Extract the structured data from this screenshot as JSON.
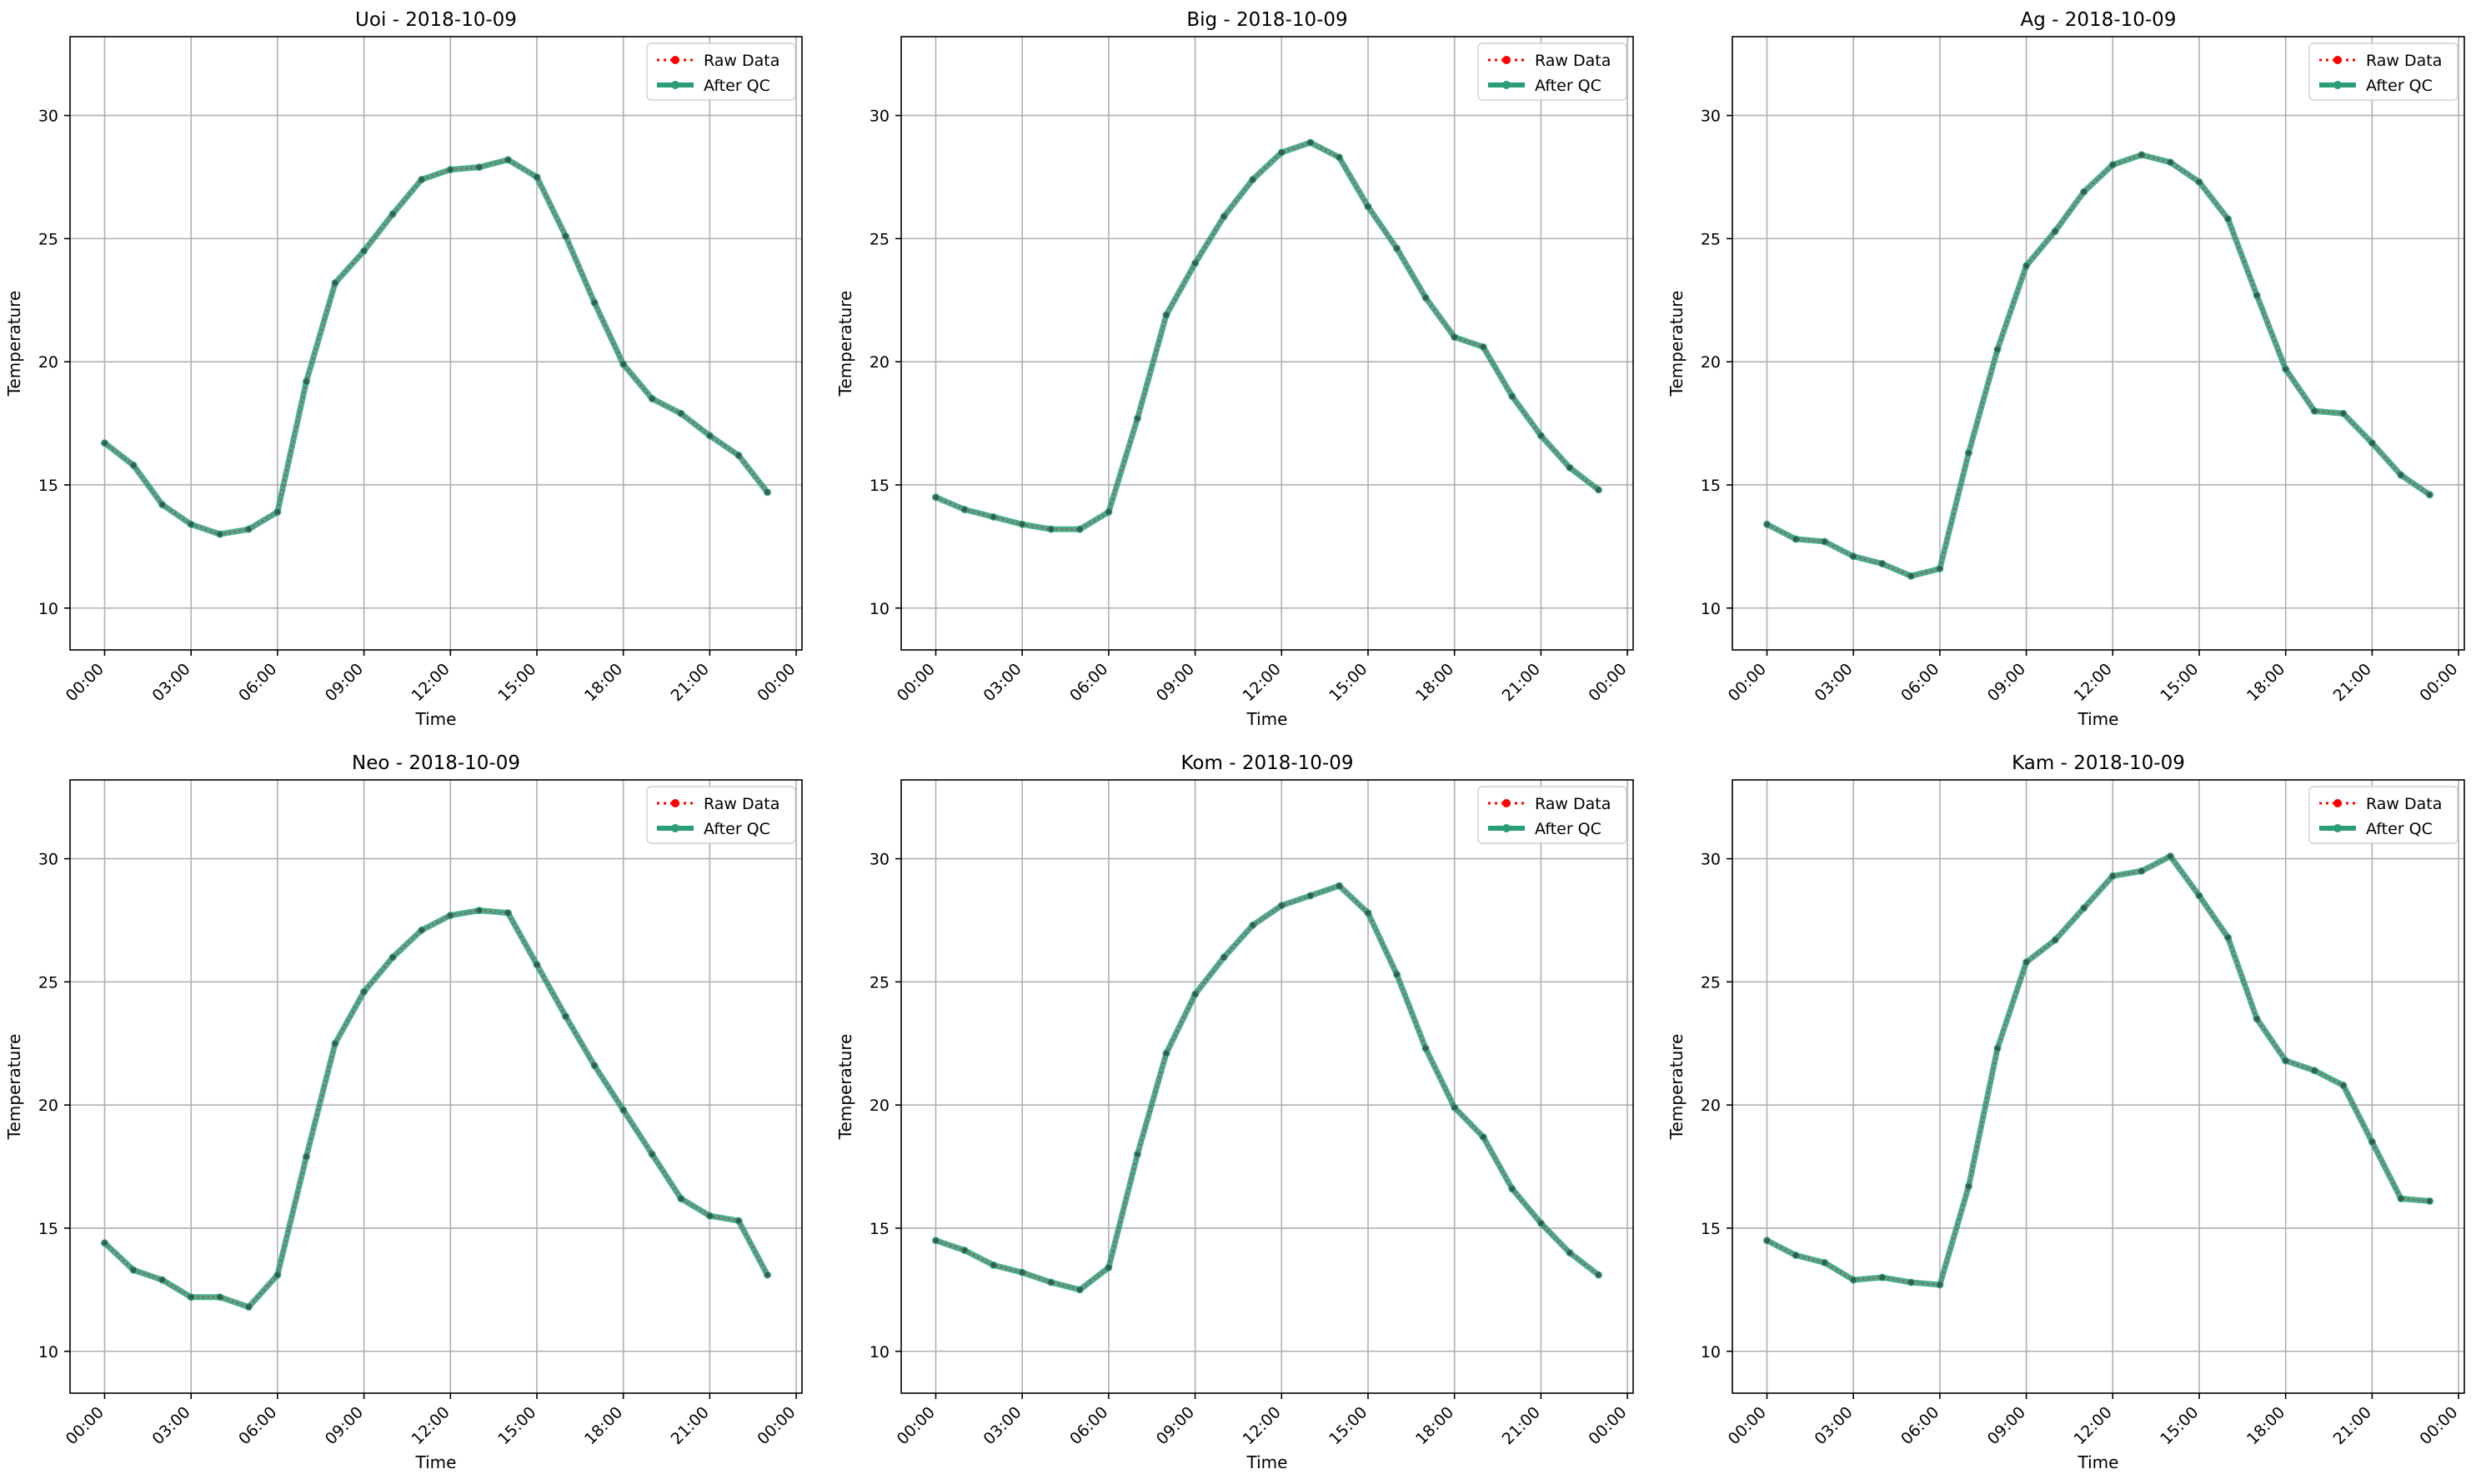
{
  "figure": {
    "x_tick_labels": [
      "00:00",
      "03:00",
      "06:00",
      "09:00",
      "12:00",
      "15:00",
      "18:00",
      "21:00",
      "00:00"
    ],
    "y_tick_labels": [
      "10",
      "15",
      "20",
      "25",
      "30"
    ],
    "legend": {
      "raw_label": "Raw Data",
      "qc_label": "After QC"
    },
    "colors": {
      "raw": "#ff0000",
      "qc": "#2a9d78",
      "grid": "#b0b0b0",
      "axes": "#000000"
    }
  },
  "chart_data": [
    {
      "type": "line",
      "title": "Uoi - 2018-10-09",
      "xlabel": "Time",
      "ylabel": "Temperature",
      "x": [
        "00:00",
        "01:00",
        "02:00",
        "03:00",
        "04:00",
        "05:00",
        "06:00",
        "07:00",
        "08:00",
        "09:00",
        "10:00",
        "11:00",
        "12:00",
        "13:00",
        "14:00",
        "15:00",
        "16:00",
        "17:00",
        "18:00",
        "19:00",
        "20:00",
        "21:00",
        "22:00",
        "23:00"
      ],
      "series": [
        {
          "name": "Raw Data",
          "values": [
            16.7,
            15.8,
            14.2,
            13.4,
            13.0,
            13.2,
            13.9,
            19.2,
            23.2,
            24.5,
            26.0,
            27.4,
            27.8,
            27.9,
            28.2,
            27.5,
            25.1,
            22.4,
            19.9,
            18.5,
            17.9,
            17.0,
            16.2,
            14.7
          ]
        },
        {
          "name": "After QC",
          "values": [
            16.7,
            15.8,
            14.2,
            13.4,
            13.0,
            13.2,
            13.9,
            19.2,
            23.2,
            24.5,
            26.0,
            27.4,
            27.8,
            27.9,
            28.2,
            27.5,
            25.1,
            22.4,
            19.9,
            18.5,
            17.9,
            17.0,
            16.2,
            14.7
          ]
        }
      ],
      "ylim": [
        8.3,
        33.2
      ],
      "grid": true,
      "legend_position": "top-right"
    },
    {
      "type": "line",
      "title": "Big - 2018-10-09",
      "xlabel": "Time",
      "ylabel": "Temperature",
      "x": [
        "00:00",
        "01:00",
        "02:00",
        "03:00",
        "04:00",
        "05:00",
        "06:00",
        "07:00",
        "08:00",
        "09:00",
        "10:00",
        "11:00",
        "12:00",
        "13:00",
        "14:00",
        "15:00",
        "16:00",
        "17:00",
        "18:00",
        "19:00",
        "20:00",
        "21:00",
        "22:00",
        "23:00"
      ],
      "series": [
        {
          "name": "Raw Data",
          "values": [
            14.5,
            14.0,
            13.7,
            13.4,
            13.2,
            13.2,
            13.9,
            17.7,
            21.9,
            24.0,
            25.9,
            27.4,
            28.5,
            28.9,
            28.3,
            26.3,
            24.6,
            22.6,
            21.0,
            20.6,
            18.6,
            17.0,
            15.7,
            14.8
          ]
        },
        {
          "name": "After QC",
          "values": [
            14.5,
            14.0,
            13.7,
            13.4,
            13.2,
            13.2,
            13.9,
            17.7,
            21.9,
            24.0,
            25.9,
            27.4,
            28.5,
            28.9,
            28.3,
            26.3,
            24.6,
            22.6,
            21.0,
            20.6,
            18.6,
            17.0,
            15.7,
            14.8
          ]
        }
      ],
      "ylim": [
        8.3,
        33.2
      ],
      "grid": true,
      "legend_position": "top-right"
    },
    {
      "type": "line",
      "title": "Ag - 2018-10-09",
      "xlabel": "Time",
      "ylabel": "Temperature",
      "x": [
        "00:00",
        "01:00",
        "02:00",
        "03:00",
        "04:00",
        "05:00",
        "06:00",
        "07:00",
        "08:00",
        "09:00",
        "10:00",
        "11:00",
        "12:00",
        "13:00",
        "14:00",
        "15:00",
        "16:00",
        "17:00",
        "18:00",
        "19:00",
        "20:00",
        "21:00",
        "22:00",
        "23:00"
      ],
      "series": [
        {
          "name": "Raw Data",
          "values": [
            13.4,
            12.8,
            12.7,
            12.1,
            11.8,
            11.3,
            11.6,
            16.3,
            20.5,
            23.9,
            25.3,
            26.9,
            28.0,
            28.4,
            28.1,
            27.3,
            25.8,
            22.7,
            19.7,
            18.0,
            17.9,
            16.7,
            15.4,
            14.6
          ]
        },
        {
          "name": "After QC",
          "values": [
            13.4,
            12.8,
            12.7,
            12.1,
            11.8,
            11.3,
            11.6,
            16.3,
            20.5,
            23.9,
            25.3,
            26.9,
            28.0,
            28.4,
            28.1,
            27.3,
            25.8,
            22.7,
            19.7,
            18.0,
            17.9,
            16.7,
            15.4,
            14.6
          ]
        }
      ],
      "ylim": [
        8.3,
        33.2
      ],
      "grid": true,
      "legend_position": "top-right"
    },
    {
      "type": "line",
      "title": "Neo - 2018-10-09",
      "xlabel": "Time",
      "ylabel": "Temperature",
      "x": [
        "00:00",
        "01:00",
        "02:00",
        "03:00",
        "04:00",
        "05:00",
        "06:00",
        "07:00",
        "08:00",
        "09:00",
        "10:00",
        "11:00",
        "12:00",
        "13:00",
        "14:00",
        "15:00",
        "16:00",
        "17:00",
        "18:00",
        "19:00",
        "20:00",
        "21:00",
        "22:00",
        "23:00"
      ],
      "series": [
        {
          "name": "Raw Data",
          "values": [
            14.4,
            13.3,
            12.9,
            12.2,
            12.2,
            11.8,
            13.1,
            17.9,
            22.5,
            24.6,
            26.0,
            27.1,
            27.7,
            27.9,
            27.8,
            25.7,
            23.6,
            21.6,
            19.8,
            18.0,
            16.2,
            15.5,
            15.3,
            13.1
          ]
        },
        {
          "name": "After QC",
          "values": [
            14.4,
            13.3,
            12.9,
            12.2,
            12.2,
            11.8,
            13.1,
            17.9,
            22.5,
            24.6,
            26.0,
            27.1,
            27.7,
            27.9,
            27.8,
            25.7,
            23.6,
            21.6,
            19.8,
            18.0,
            16.2,
            15.5,
            15.3,
            13.1
          ]
        }
      ],
      "ylim": [
        8.3,
        33.2
      ],
      "grid": true,
      "legend_position": "top-right"
    },
    {
      "type": "line",
      "title": "Kom - 2018-10-09",
      "xlabel": "Time",
      "ylabel": "Temperature",
      "x": [
        "00:00",
        "01:00",
        "02:00",
        "03:00",
        "04:00",
        "05:00",
        "06:00",
        "07:00",
        "08:00",
        "09:00",
        "10:00",
        "11:00",
        "12:00",
        "13:00",
        "14:00",
        "15:00",
        "16:00",
        "17:00",
        "18:00",
        "19:00",
        "20:00",
        "21:00",
        "22:00",
        "23:00"
      ],
      "series": [
        {
          "name": "Raw Data",
          "values": [
            14.5,
            14.1,
            13.5,
            13.2,
            12.8,
            12.5,
            13.4,
            18.0,
            22.1,
            24.5,
            26.0,
            27.3,
            28.1,
            28.5,
            28.9,
            27.8,
            25.3,
            22.3,
            19.9,
            18.7,
            16.6,
            15.2,
            14.0,
            13.1
          ]
        },
        {
          "name": "After QC",
          "values": [
            14.5,
            14.1,
            13.5,
            13.2,
            12.8,
            12.5,
            13.4,
            18.0,
            22.1,
            24.5,
            26.0,
            27.3,
            28.1,
            28.5,
            28.9,
            27.8,
            25.3,
            22.3,
            19.9,
            18.7,
            16.6,
            15.2,
            14.0,
            13.1
          ]
        }
      ],
      "ylim": [
        8.3,
        33.2
      ],
      "grid": true,
      "legend_position": "top-right"
    },
    {
      "type": "line",
      "title": "Kam - 2018-10-09",
      "xlabel": "Time",
      "ylabel": "Temperature",
      "x": [
        "00:00",
        "01:00",
        "02:00",
        "03:00",
        "04:00",
        "05:00",
        "06:00",
        "07:00",
        "08:00",
        "09:00",
        "10:00",
        "11:00",
        "12:00",
        "13:00",
        "14:00",
        "15:00",
        "16:00",
        "17:00",
        "18:00",
        "19:00",
        "20:00",
        "21:00",
        "22:00",
        "23:00"
      ],
      "series": [
        {
          "name": "Raw Data",
          "values": [
            14.5,
            13.9,
            13.6,
            12.9,
            13.0,
            12.8,
            12.7,
            16.7,
            22.3,
            25.8,
            26.7,
            28.0,
            29.3,
            29.5,
            30.1,
            28.5,
            26.8,
            23.5,
            21.8,
            21.4,
            20.8,
            18.5,
            16.2,
            16.1
          ]
        },
        {
          "name": "After QC",
          "values": [
            14.5,
            13.9,
            13.6,
            12.9,
            13.0,
            12.8,
            12.7,
            16.7,
            22.3,
            25.8,
            26.7,
            28.0,
            29.3,
            29.5,
            30.1,
            28.5,
            26.8,
            23.5,
            21.8,
            21.4,
            20.8,
            18.5,
            16.2,
            16.1
          ]
        }
      ],
      "ylim": [
        8.3,
        33.2
      ],
      "grid": true,
      "legend_position": "top-right"
    }
  ]
}
